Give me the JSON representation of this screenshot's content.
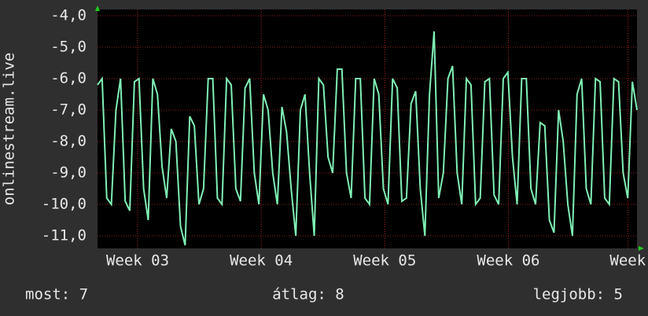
{
  "chart_data": {
    "type": "line",
    "ylabel": "onlinestream.live",
    "xlim": [
      0,
      117
    ],
    "xticks": [
      {
        "value": 8.7,
        "label": "Week 03"
      },
      {
        "value": 35.5,
        "label": "Week 04"
      },
      {
        "value": 62.3,
        "label": "Week 05"
      },
      {
        "value": 89.1,
        "label": "Week 06"
      },
      {
        "value": 115,
        "label": "Week"
      }
    ],
    "ylim": [
      -11.4,
      -3.8
    ],
    "yticks": [
      {
        "value": -4,
        "label": "-4,0"
      },
      {
        "value": -5,
        "label": "-5,0"
      },
      {
        "value": -6,
        "label": "-6,0"
      },
      {
        "value": -7,
        "label": "-7,0"
      },
      {
        "value": -8,
        "label": "-8,0"
      },
      {
        "value": -9,
        "label": "-9,0"
      },
      {
        "value": -10,
        "label": "-10,0"
      },
      {
        "value": -11,
        "label": "-11,0"
      }
    ],
    "grid": true,
    "series": [
      {
        "color": "#7ff0b4",
        "values": [
          -6.2,
          -6.0,
          -9.8,
          -10.0,
          -7.0,
          -6.0,
          -9.9,
          -10.2,
          -6.1,
          -6.0,
          -9.5,
          -10.5,
          -6.0,
          -6.5,
          -8.8,
          -9.8,
          -7.6,
          -8.0,
          -10.7,
          -11.3,
          -7.2,
          -7.5,
          -10.0,
          -9.5,
          -6.0,
          -6.0,
          -9.8,
          -10.0,
          -6.0,
          -6.2,
          -9.5,
          -9.9,
          -6.3,
          -6.0,
          -9.0,
          -10.0,
          -6.5,
          -7.0,
          -9.0,
          -10.0,
          -6.9,
          -7.7,
          -9.5,
          -11.0,
          -7.0,
          -6.5,
          -9.0,
          -11.0,
          -6.0,
          -6.2,
          -8.5,
          -9.0,
          -5.7,
          -5.7,
          -9.0,
          -9.8,
          -6.0,
          -6.0,
          -9.8,
          -10.0,
          -6.0,
          -6.5,
          -9.5,
          -10.0,
          -6.0,
          -6.3,
          -9.9,
          -9.8,
          -6.8,
          -6.4,
          -9.5,
          -11.0,
          -6.5,
          -4.5,
          -9.8,
          -9.0,
          -6.0,
          -5.6,
          -9.0,
          -10.0,
          -6.0,
          -6.2,
          -10.0,
          -9.8,
          -6.1,
          -6.0,
          -9.7,
          -10.0,
          -6.0,
          -5.8,
          -8.5,
          -10.0,
          -6.0,
          -6.0,
          -9.5,
          -10.0,
          -7.4,
          -7.5,
          -10.5,
          -10.9,
          -7.0,
          -8.0,
          -10.0,
          -11.0,
          -6.5,
          -6.0,
          -9.5,
          -10.0,
          -6.0,
          -6.1,
          -9.8,
          -10.0,
          -6.0,
          -6.1,
          -9.0,
          -9.8,
          -6.1,
          -7.0
        ]
      }
    ]
  },
  "footer": [
    "most: 7",
    "átlag: 8",
    "legjobb: 5"
  ]
}
